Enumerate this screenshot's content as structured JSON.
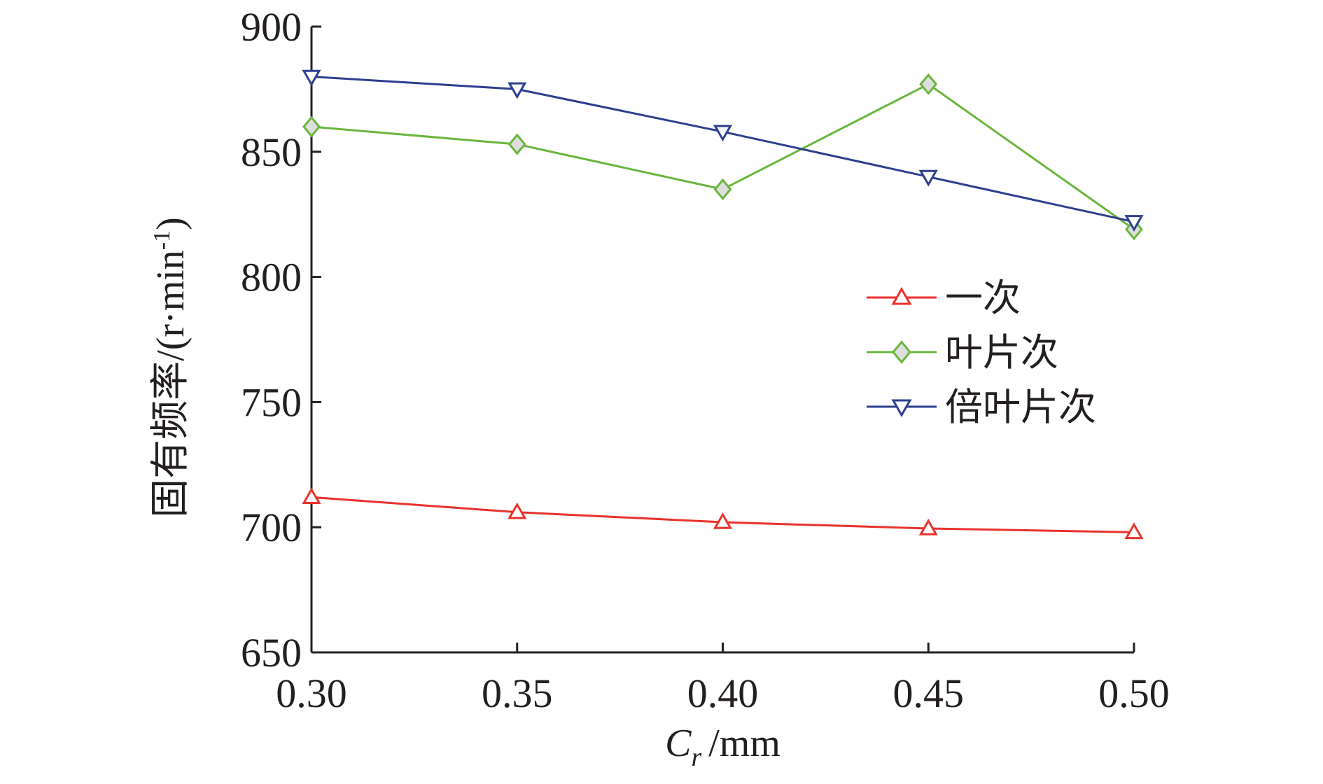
{
  "chart_data": {
    "type": "line",
    "title": "",
    "xlabel_main": "C",
    "xlabel_sub": "r",
    "xlabel_unit": "/mm",
    "ylabel": "固有频率/(r·min",
    "ylabel_sup": "-1",
    "ylabel_close": ")",
    "x": [
      0.3,
      0.35,
      0.4,
      0.45,
      0.5
    ],
    "x_tick_labels": [
      "0.30",
      "0.35",
      "0.40",
      "0.45",
      "0.50"
    ],
    "y_ticks": [
      650,
      700,
      750,
      800,
      850,
      900
    ],
    "y_tick_labels": [
      "650",
      "700",
      "750",
      "800",
      "850",
      "900"
    ],
    "xlim": [
      0.3,
      0.5
    ],
    "ylim": [
      650,
      900
    ],
    "grid": false,
    "legend_position": "center-right",
    "series": [
      {
        "name": "一次",
        "color": "#e8322e",
        "marker": "triangle-up",
        "values": [
          712,
          706,
          702,
          699.5,
          698
        ]
      },
      {
        "name": "叶片次",
        "color": "#6ab63d",
        "marker": "diamond",
        "values": [
          860,
          853,
          835,
          877,
          819
        ]
      },
      {
        "name": "倍叶片次",
        "color": "#2e3f8f",
        "marker": "triangle-down",
        "values": [
          880,
          875,
          858,
          840,
          822
        ]
      }
    ]
  }
}
